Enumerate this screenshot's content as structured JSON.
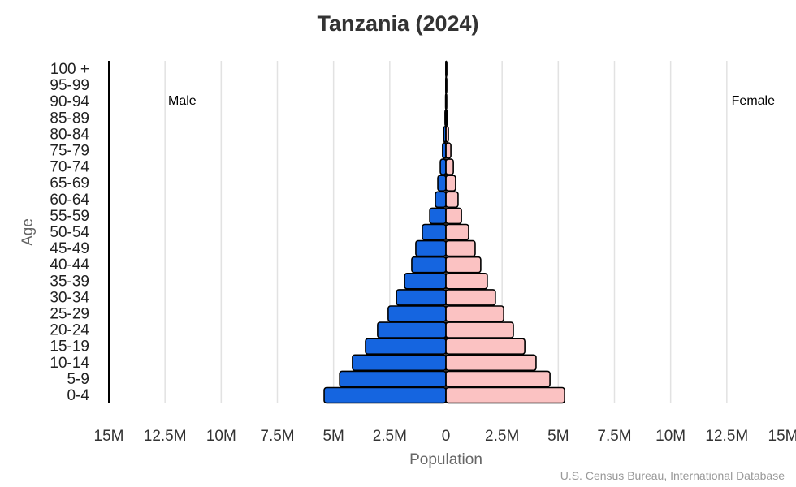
{
  "chart_data": {
    "type": "bar",
    "orientation": "horizontal-population-pyramid",
    "title": "Tanzania (2024)",
    "xlabel": "Population",
    "ylabel": "Age",
    "source": "U.S. Census Bureau, International Database",
    "xlim": [
      -15000000,
      15000000
    ],
    "x_ticks": [
      "15M",
      "12.5M",
      "10M",
      "7.5M",
      "5M",
      "2.5M",
      "0",
      "2.5M",
      "5M",
      "7.5M",
      "10M",
      "12.5M",
      "15M"
    ],
    "grid": "vertical",
    "categories": [
      "100 +",
      "95-99",
      "90-94",
      "85-89",
      "80-84",
      "75-79",
      "70-74",
      "65-69",
      "60-64",
      "55-59",
      "50-54",
      "45-49",
      "40-44",
      "35-39",
      "30-34",
      "25-29",
      "20-24",
      "15-19",
      "10-14",
      "5-9",
      "0-4"
    ],
    "series": [
      {
        "name": "Male",
        "color": "#1565e0",
        "values": [
          1000,
          5000,
          15000,
          40000,
          100000,
          150000,
          250000,
          360000,
          470000,
          720000,
          1050000,
          1340000,
          1520000,
          1840000,
          2200000,
          2570000,
          3040000,
          3580000,
          4160000,
          4730000,
          5420000
        ]
      },
      {
        "name": "Female",
        "color": "#fbc2c2",
        "values": [
          2000,
          8000,
          20000,
          55000,
          110000,
          220000,
          330000,
          430000,
          540000,
          690000,
          1010000,
          1300000,
          1550000,
          1840000,
          2200000,
          2570000,
          3000000,
          3510000,
          4010000,
          4630000,
          5280000
        ]
      }
    ]
  }
}
